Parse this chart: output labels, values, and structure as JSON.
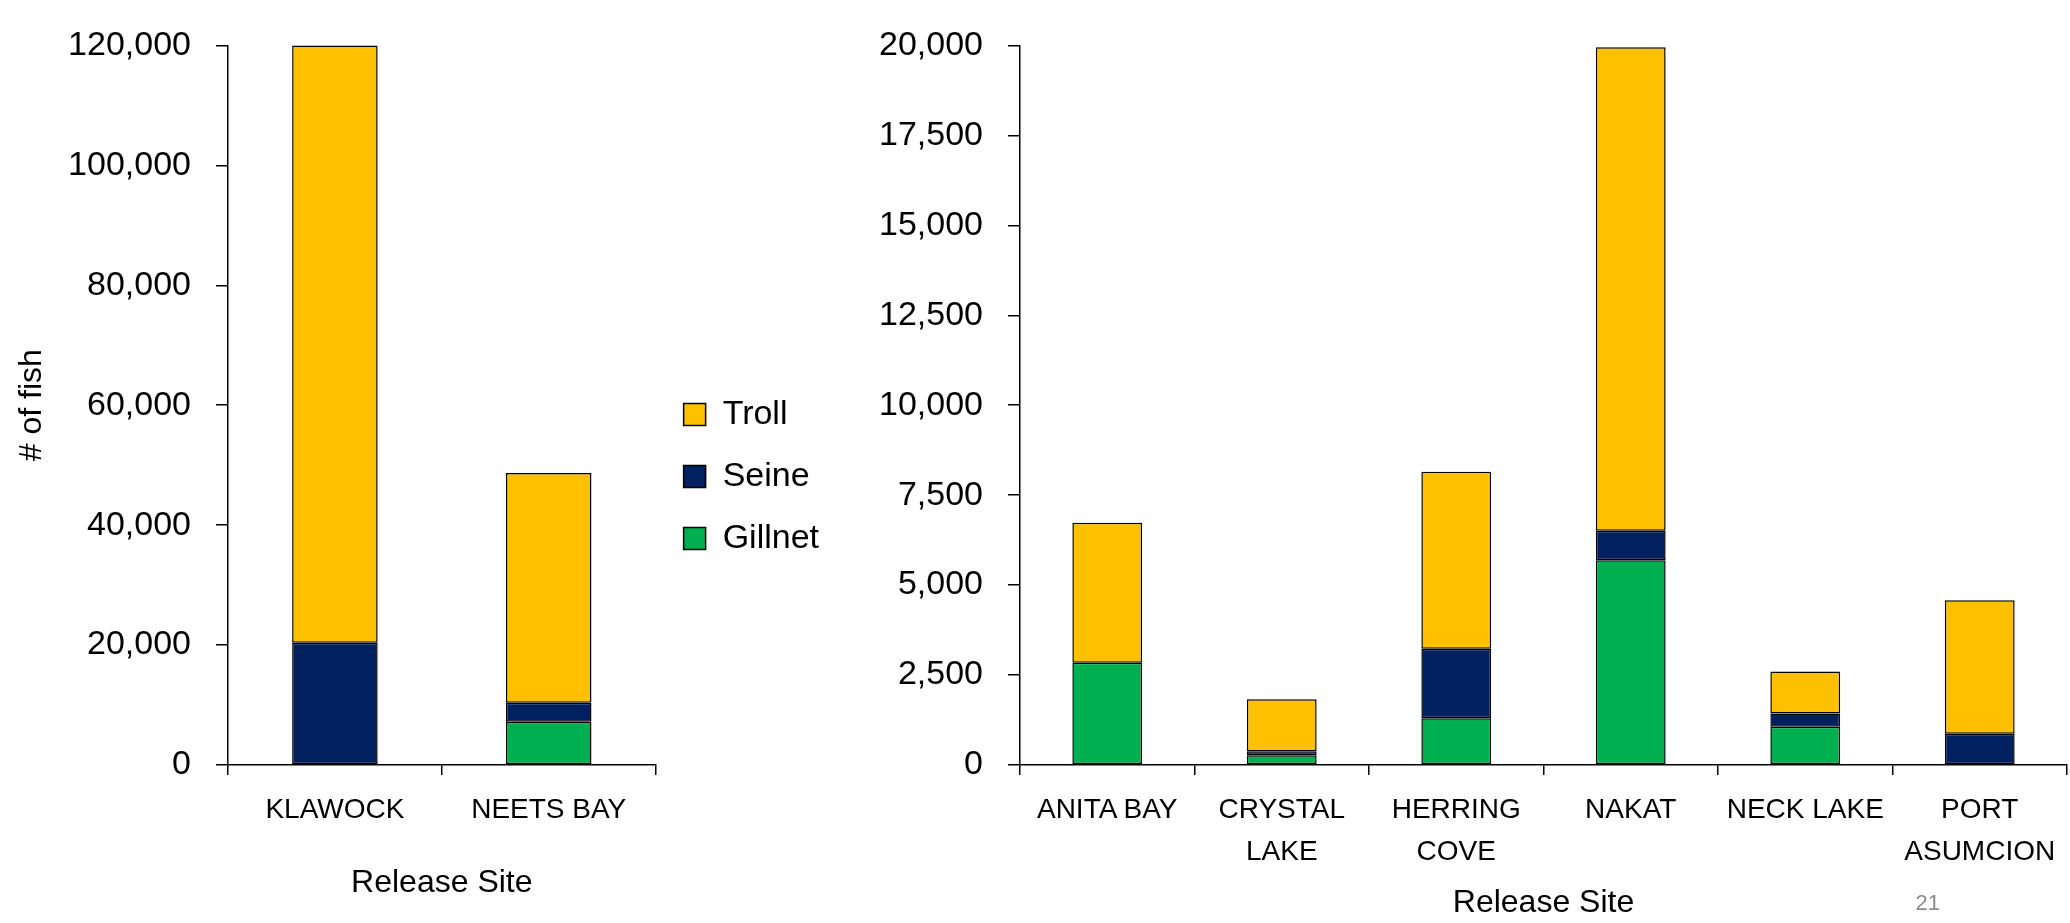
{
  "chart_data": [
    {
      "type": "bar",
      "stacked": true,
      "ylabel": "# of fish",
      "xlabel": "Release Site",
      "categories": [
        "KLAWOCK",
        "NEETS BAY"
      ],
      "series": [
        {
          "name": "Gillnet",
          "color": "#00b050",
          "values": [
            0,
            7200
          ]
        },
        {
          "name": "Seine",
          "color": "#002060",
          "values": [
            20400,
            3200
          ]
        },
        {
          "name": "Troll",
          "color": "#ffc000",
          "values": [
            99600,
            38300
          ]
        }
      ],
      "ylim": [
        0,
        120000
      ],
      "yticks": [
        0,
        {
          "value": 20000,
          "label": "20,000"
        },
        {
          "value": 40000,
          "label": "40,000"
        },
        {
          "value": 60000,
          "label": "60,000"
        },
        {
          "value": 80000,
          "label": "80,000"
        },
        {
          "value": 100000,
          "label": "100,000"
        },
        {
          "value": 120000,
          "label": "120,000"
        }
      ],
      "legend": "right"
    },
    {
      "type": "bar",
      "stacked": true,
      "xlabel": "Release Site",
      "categories": [
        "ANITA BAY",
        "CRYSTAL LAKE",
        "HERRING COVE",
        "NAKAT",
        "NECK LAKE",
        "PORT ASUMCION"
      ],
      "series": [
        {
          "color": "#00b050",
          "values": [
            2840,
            270,
            1300,
            5690,
            1060,
            0
          ]
        },
        {
          "color": "#002060",
          "values": [
            0,
            110,
            1930,
            820,
            370,
            870
          ]
        },
        {
          "color": "#ffc000",
          "values": [
            3890,
            1450,
            4920,
            13440,
            1170,
            3710
          ]
        }
      ],
      "ylim": [
        0,
        20000
      ],
      "yticks": [
        0,
        {
          "value": 2500,
          "label": "2,500"
        },
        {
          "value": 5000,
          "label": "5,000"
        },
        {
          "value": 7500,
          "label": "7,500"
        },
        {
          "value": 10000,
          "label": "10,000"
        },
        {
          "value": 12500,
          "label": "12,500"
        },
        {
          "value": 15000,
          "label": "15,000"
        },
        {
          "value": 17500,
          "label": "17,500"
        },
        {
          "value": 20000,
          "label": "20,000"
        }
      ],
      "annotations": [
        "21"
      ]
    }
  ]
}
